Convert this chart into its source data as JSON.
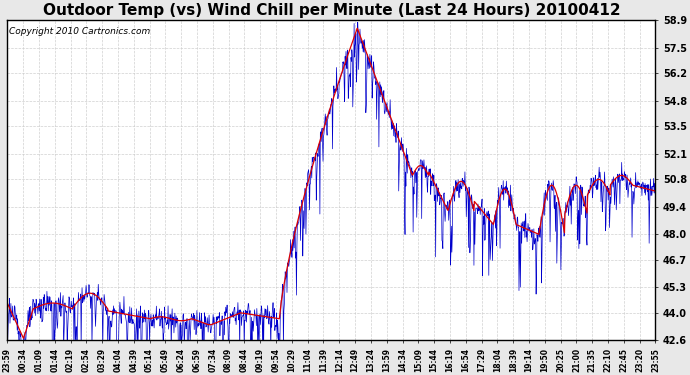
{
  "title": "Outdoor Temp (vs) Wind Chill per Minute (Last 24 Hours) 20100412",
  "copyright": "Copyright 2010 Cartronics.com",
  "yticks": [
    42.6,
    44.0,
    45.3,
    46.7,
    48.0,
    49.4,
    50.8,
    52.1,
    53.5,
    54.8,
    56.2,
    57.5,
    58.9
  ],
  "ymin": 42.6,
  "ymax": 58.9,
  "xtick_labels": [
    "23:59",
    "00:34",
    "01:09",
    "01:44",
    "02:19",
    "02:54",
    "03:29",
    "04:04",
    "04:39",
    "05:14",
    "05:49",
    "06:24",
    "06:59",
    "07:34",
    "08:09",
    "08:44",
    "09:19",
    "09:54",
    "10:29",
    "11:04",
    "11:39",
    "12:14",
    "12:49",
    "13:24",
    "13:59",
    "14:34",
    "15:09",
    "15:44",
    "16:19",
    "16:54",
    "17:29",
    "18:04",
    "18:39",
    "19:14",
    "19:50",
    "20:25",
    "21:00",
    "21:35",
    "22:10",
    "22:45",
    "23:20",
    "23:55"
  ],
  "bg_color": "#e8e8e8",
  "plot_bg_color": "#ffffff",
  "grid_color": "#cccccc",
  "red_color": "#dd0000",
  "blue_color": "#0000cc",
  "title_fontsize": 11,
  "copyright_fontsize": 6.5
}
